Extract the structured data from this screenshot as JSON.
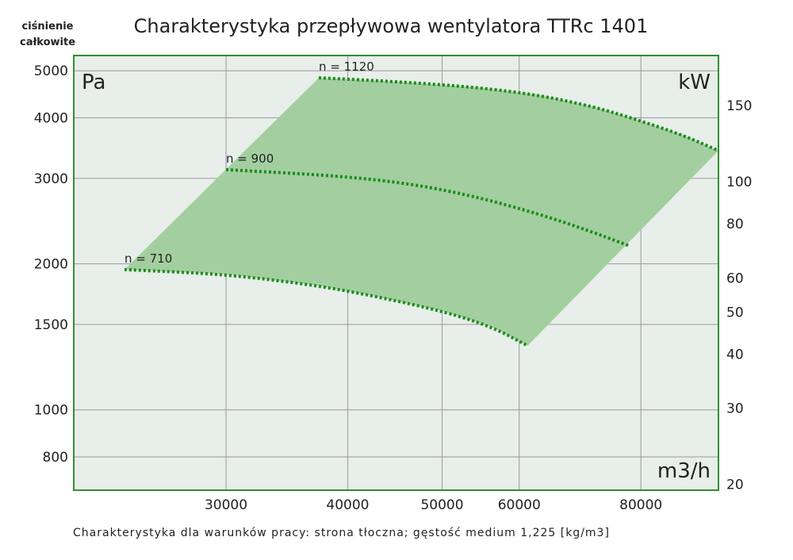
{
  "chart_data": {
    "type": "line",
    "title": "Charakterystyka przepływowa wentylatora TTRc 1401",
    "ylabel": "ciśnienie całkowite",
    "ylabel_lines": [
      "ciśnienie",
      "całkowite"
    ],
    "y_unit": "Pa",
    "y2_unit": "kW",
    "x_unit": "m3/h",
    "footnote": "Charakterystyka dla warunków pracy: strona tłoczna; gęstość medium 1,225 [kg/m3]",
    "x_scale": "log",
    "y_scale": "log",
    "xlim": [
      20930,
      96100
    ],
    "ylim": [
      683,
      5375
    ],
    "x_ticks": [
      30000,
      40000,
      50000,
      60000,
      80000
    ],
    "y_ticks": [
      800,
      1000,
      1500,
      2000,
      3000,
      4000,
      5000
    ],
    "y2_ticks": [
      20,
      30,
      40,
      50,
      60,
      80,
      100,
      150
    ],
    "y2lim": [
      19.3,
      195
    ],
    "grid": true,
    "series": [
      {
        "name": "n = 710",
        "x": [
          23600,
          30000,
          37200,
          43200,
          50200,
          56200,
          61200
        ],
        "y": [
          1946,
          1903,
          1805,
          1706,
          1595,
          1484,
          1356
        ]
      },
      {
        "name": "n = 900",
        "x": [
          30000,
          39400,
          46600,
          54200,
          62900,
          70400,
          77800
        ],
        "y": [
          3127,
          3034,
          2922,
          2750,
          2533,
          2349,
          2179
        ]
      },
      {
        "name": "n = 1120",
        "x": [
          37360,
          44900,
          54200,
          62900,
          71800,
          78800,
          88200,
          96100
        ],
        "y": [
          4836,
          4749,
          4624,
          4454,
          4209,
          3978,
          3690,
          3422
        ]
      }
    ],
    "operating_region": "shaded area between n = 710 and n = 1120 curves",
    "colors": {
      "plot_bg": "#e8eeea",
      "border": "#2f8f2f",
      "fill": "#a3cfa0",
      "curve": "#1b8c1b",
      "grid": "#9a9a9a"
    }
  }
}
